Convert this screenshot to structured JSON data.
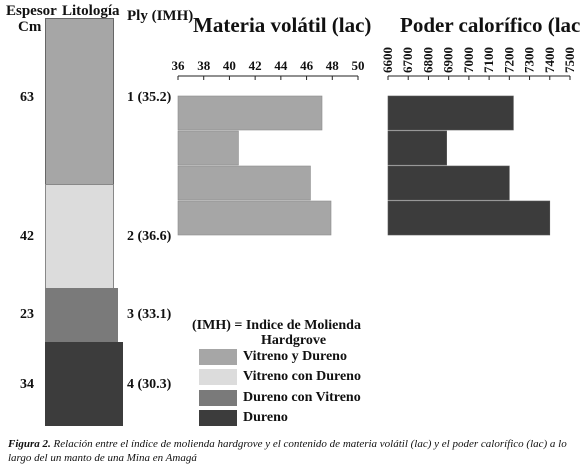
{
  "headers": {
    "espesor": "Espesor",
    "cm": "Cm",
    "litologia": "Litología",
    "ply": "Ply (IMH)"
  },
  "colors": {
    "vitreno_y_dureno": "#a6a6a6",
    "vitreno_con_dureno": "#dcdcdc",
    "dureno_con_vitreno": "#7a7a7a",
    "dureno": "#3c3c3c"
  },
  "layers": [
    {
      "espesor": "63",
      "ply": "1 (35.2)",
      "lithology": "vitreno_y_dureno"
    },
    {
      "espesor": "42",
      "ply": "2 (36.6)",
      "lithology": "vitreno_con_dureno"
    },
    {
      "espesor": "23",
      "ply": "3 (33.1)",
      "lithology": "dureno_con_vitreno"
    },
    {
      "espesor": "34",
      "ply": "4 (30.3)",
      "lithology": "dureno"
    }
  ],
  "legend": {
    "title_line1": "(IMH) = Indice de Molienda",
    "title_line2": "Hardgrove",
    "items": [
      {
        "label": "Vitreno y Dureno",
        "color_key": "vitreno_y_dureno"
      },
      {
        "label": "Vitreno con Dureno",
        "color_key": "vitreno_con_dureno"
      },
      {
        "label": "Dureno con Vitreno",
        "color_key": "dureno_con_vitreno"
      },
      {
        "label": "Dureno",
        "color_key": "dureno"
      }
    ]
  },
  "caption": {
    "label": "Figura 2.",
    "text": " Relación entre el índice de molienda hardgrove y el contenido de materia volátil (lac) y el poder calorífico (lac) a lo largo del un manto de una Mina  en Amagá"
  },
  "chart_data": [
    {
      "type": "bar",
      "orientation": "horizontal",
      "title": "Materia volátil (lac)",
      "xlim": [
        36,
        50
      ],
      "ticks": [
        "36",
        "38",
        "40",
        "42",
        "44",
        "46",
        "48",
        "50"
      ],
      "categories": [
        "1",
        "2",
        "3",
        "4"
      ],
      "values": [
        47.2,
        40.7,
        46.3,
        47.9
      ],
      "color": "#a6a6a6"
    },
    {
      "type": "bar",
      "orientation": "horizontal",
      "title": "Poder calorífico (lac)",
      "xlim": [
        6600,
        7500
      ],
      "ticks": [
        "6600",
        "6700",
        "6800",
        "6900",
        "7000",
        "7100",
        "7200",
        "7300",
        "7400",
        "7500"
      ],
      "categories": [
        "1",
        "2",
        "3",
        "4"
      ],
      "values": [
        7220,
        6890,
        7200,
        7400
      ],
      "color": "#3c3c3c"
    }
  ]
}
